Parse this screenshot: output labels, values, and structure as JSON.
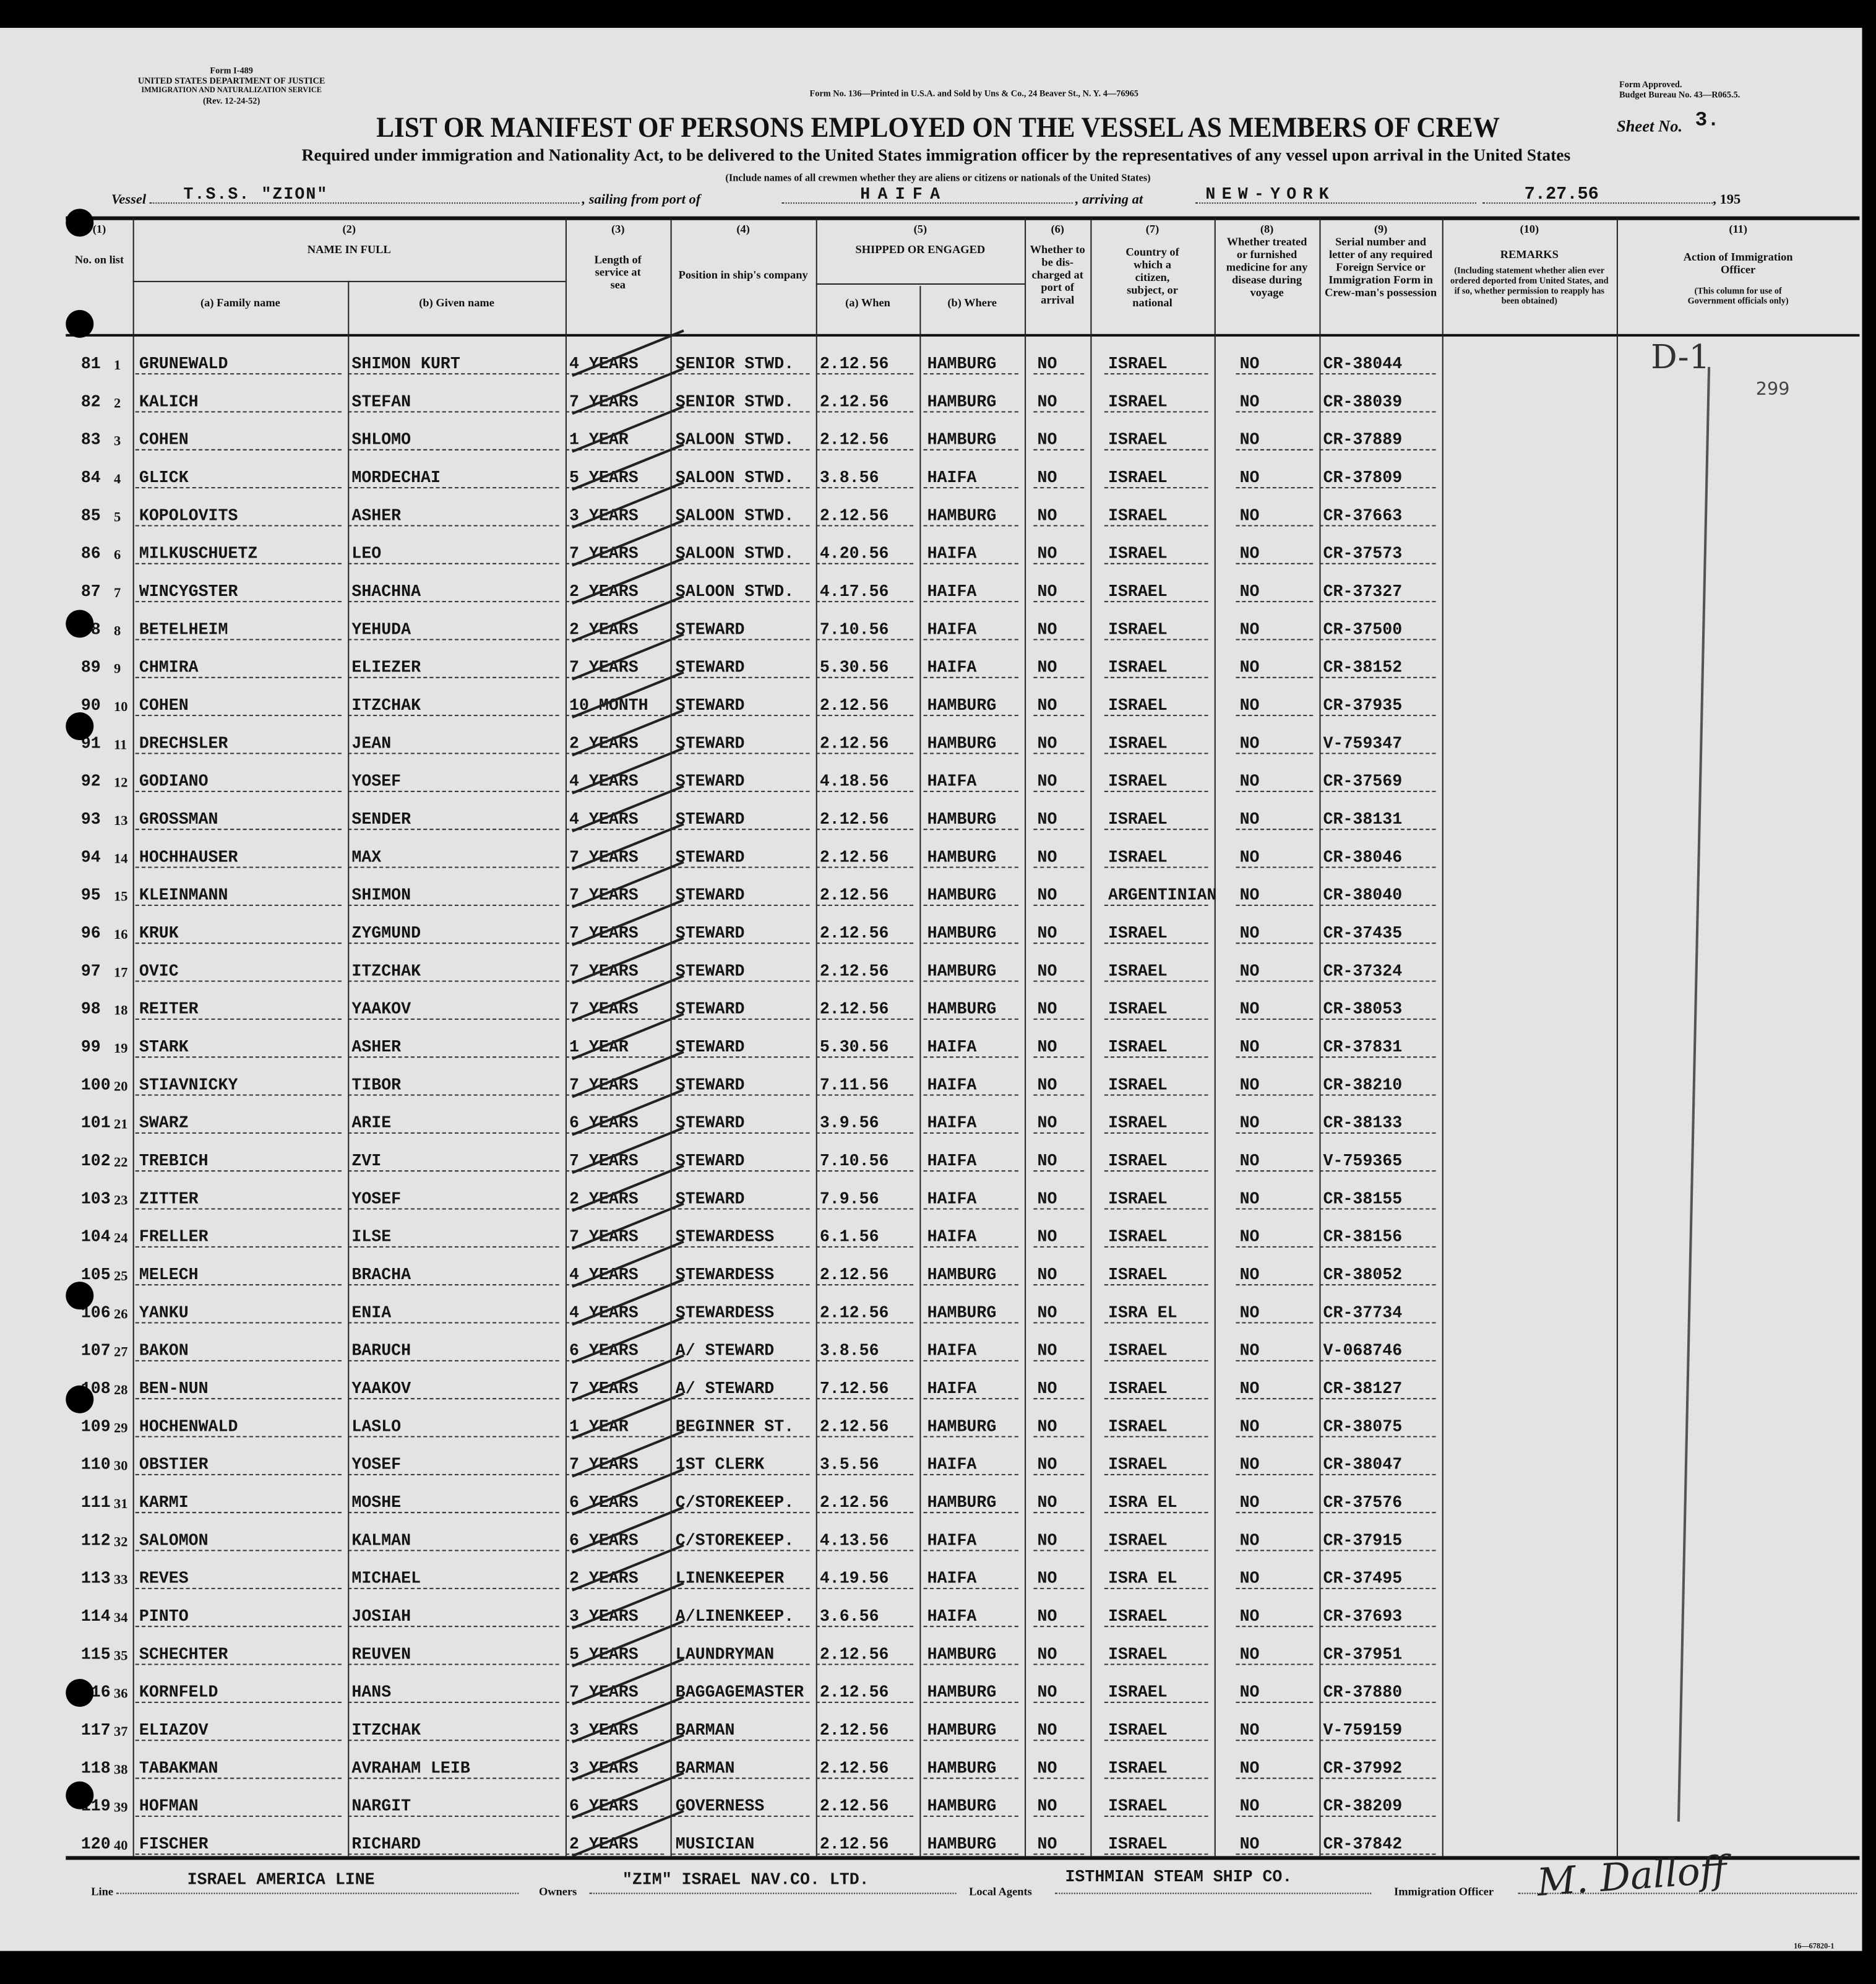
{
  "form": {
    "form_id": "Form I-489",
    "department": "UNITED STATES DEPARTMENT OF JUSTICE",
    "service": "IMMIGRATION AND NATURALIZATION SERVICE",
    "revision": "(Rev. 12-24-52)",
    "printer_note": "Form No. 136—Printed in U.S.A. and Sold by Uns & Co., 24 Beaver St., N. Y. 4—76965",
    "approval": "Form Approved.",
    "budget": "Budget Bureau No. 43—R065.5.",
    "title": "LIST OR MANIFEST OF PERSONS EMPLOYED ON THE VESSEL AS MEMBERS OF CREW",
    "sheet_label": "Sheet No.",
    "sheet_no": "3.",
    "subtitle": "Required under immigration and Nationality Act, to be delivered to the United States immigration officer by the representatives of any vessel upon arrival in the United States",
    "include_note": "(Include names of all crewmen whether they are aliens or citizens or nationals of the United States)",
    "form_number_footer": "16—67820-1"
  },
  "voyage": {
    "vessel_label": "Vessel",
    "vessel": "T.S.S. \"ZION\"",
    "sailing_label": ", sailing from port of",
    "port_from": "HAIFA",
    "arriving_label": ", arriving at",
    "port_to": "NEW-YORK",
    "date": "7.27.56",
    "year_suffix": ", 195"
  },
  "columns": {
    "c1_num": "(1)",
    "c1": "No. on list",
    "c2_num": "(2)",
    "c2": "NAME IN FULL",
    "c2a": "(a) Family name",
    "c2b": "(b) Given name",
    "c3_num": "(3)",
    "c3": "Length of service at sea",
    "c4_num": "(4)",
    "c4": "Position in ship's company",
    "c5_num": "(5)",
    "c5": "SHIPPED OR ENGAGED",
    "c5a": "(a) When",
    "c5b": "(b) Where",
    "c6_num": "(6)",
    "c6": "Whether to be dis-charged at port of arrival",
    "c7_num": "(7)",
    "c7": "Country of which a citizen, subject, or national",
    "c8_num": "(8)",
    "c8": "Whether treated or furnished medicine for any disease during voyage",
    "c9_num": "(9)",
    "c9": "Serial number and letter of any required Foreign Service or Immigration Form in Crew-man's possession",
    "c10_num": "(10)",
    "c10": "REMARKS",
    "c10_note": "(Including statement whether alien ever ordered deported from United States, and if so, whether permission to reapply has been obtained)",
    "c11_num": "(11)",
    "c11": "Action of Immigration Officer",
    "c11_note": "(This column for use of Government officials only)"
  },
  "handwritten": {
    "action_mark": "D-1",
    "page_stamp": "299"
  },
  "rows": [
    [
      "81",
      "1",
      "GRUNEWALD",
      "SHIMON KURT",
      "4 YEARS",
      "SENIOR STWD.",
      "2.12.56",
      "HAMBURG",
      "NO",
      "ISRAEL",
      "NO",
      "CR-38044"
    ],
    [
      "82",
      "2",
      "KALICH",
      "STEFAN",
      "7 YEARS",
      "SENIOR STWD.",
      "2.12.56",
      "HAMBURG",
      "NO",
      "ISRAEL",
      "NO",
      "CR-38039"
    ],
    [
      "83",
      "3",
      "COHEN",
      "SHLOMO",
      "1 YEAR",
      "SALOON STWD.",
      "2.12.56",
      "HAMBURG",
      "NO",
      "ISRAEL",
      "NO",
      "CR-37889"
    ],
    [
      "84",
      "4",
      "GLICK",
      "MORDECHAI",
      "5 YEARS",
      "SALOON STWD.",
      "3.8.56",
      "HAIFA",
      "NO",
      "ISRAEL",
      "NO",
      "CR-37809"
    ],
    [
      "85",
      "5",
      "KOPOLOVITS",
      "ASHER",
      "3 YEARS",
      "SALOON STWD.",
      "2.12.56",
      "HAMBURG",
      "NO",
      "ISRAEL",
      "NO",
      "CR-37663"
    ],
    [
      "86",
      "6",
      "MILKUSCHUETZ",
      "LEO",
      "7 YEARS",
      "SALOON STWD.",
      "4.20.56",
      "HAIFA",
      "NO",
      "ISRAEL",
      "NO",
      "CR-37573"
    ],
    [
      "87",
      "7",
      "WINCYGSTER",
      "SHACHNA",
      "2 YEARS",
      "SALOON STWD.",
      "4.17.56",
      "HAIFA",
      "NO",
      "ISRAEL",
      "NO",
      "CR-37327"
    ],
    [
      "88",
      "8",
      "BETELHEIM",
      "YEHUDA",
      "2 YEARS",
      "STEWARD",
      "7.10.56",
      "HAIFA",
      "NO",
      "ISRAEL",
      "NO",
      "CR-37500"
    ],
    [
      "89",
      "9",
      "CHMIRA",
      "ELIEZER",
      "7 YEARS",
      "STEWARD",
      "5.30.56",
      "HAIFA",
      "NO",
      "ISRAEL",
      "NO",
      "CR-38152"
    ],
    [
      "90",
      "10",
      "COHEN",
      "ITZCHAK",
      "10 MONTH",
      "STEWARD",
      "2.12.56",
      "HAMBURG",
      "NO",
      "ISRAEL",
      "NO",
      "CR-37935"
    ],
    [
      "91",
      "11",
      "DRECHSLER",
      "JEAN",
      "2 YEARS",
      "STEWARD",
      "2.12.56",
      "HAMBURG",
      "NO",
      "ISRAEL",
      "NO",
      "V-759347"
    ],
    [
      "92",
      "12",
      "GODIANO",
      "YOSEF",
      "4 YEARS",
      "STEWARD",
      "4.18.56",
      "HAIFA",
      "NO",
      "ISRAEL",
      "NO",
      "CR-37569"
    ],
    [
      "93",
      "13",
      "GROSSMAN",
      "SENDER",
      "4 YEARS",
      "STEWARD",
      "2.12.56",
      "HAMBURG",
      "NO",
      "ISRAEL",
      "NO",
      "CR-38131"
    ],
    [
      "94",
      "14",
      "HOCHHAUSER",
      "MAX",
      "7 YEARS",
      "STEWARD",
      "2.12.56",
      "HAMBURG",
      "NO",
      "ISRAEL",
      "NO",
      "CR-38046"
    ],
    [
      "95",
      "15",
      "KLEINMANN",
      "SHIMON",
      "7 YEARS",
      "STEWARD",
      "2.12.56",
      "HAMBURG",
      "NO",
      "ARGENTINIAN",
      "NO",
      "CR-38040"
    ],
    [
      "96",
      "16",
      "KRUK",
      "ZYGMUND",
      "7 YEARS",
      "STEWARD",
      "2.12.56",
      "HAMBURG",
      "NO",
      "ISRAEL",
      "NO",
      "CR-37435"
    ],
    [
      "97",
      "17",
      "OVIC",
      "ITZCHAK",
      "7 YEARS",
      "STEWARD",
      "2.12.56",
      "HAMBURG",
      "NO",
      "ISRAEL",
      "NO",
      "CR-37324"
    ],
    [
      "98",
      "18",
      "REITER",
      "YAAKOV",
      "7 YEARS",
      "STEWARD",
      "2.12.56",
      "HAMBURG",
      "NO",
      "ISRAEL",
      "NO",
      "CR-38053"
    ],
    [
      "99",
      "19",
      "STARK",
      "ASHER",
      "1 YEAR",
      "STEWARD",
      "5.30.56",
      "HAIFA",
      "NO",
      "ISRAEL",
      "NO",
      "CR-37831"
    ],
    [
      "100",
      "20",
      "STIAVNICKY",
      "TIBOR",
      "7 YEARS",
      "STEWARD",
      "7.11.56",
      "HAIFA",
      "NO",
      "ISRAEL",
      "NO",
      "CR-38210"
    ],
    [
      "101",
      "21",
      "SWARZ",
      "ARIE",
      "6 YEARS",
      "STEWARD",
      "3.9.56",
      "HAIFA",
      "NO",
      "ISRAEL",
      "NO",
      "CR-38133"
    ],
    [
      "102",
      "22",
      "TREBICH",
      "ZVI",
      "7 YEARS",
      "STEWARD",
      "7.10.56",
      "HAIFA",
      "NO",
      "ISRAEL",
      "NO",
      "V-759365"
    ],
    [
      "103",
      "23",
      "ZITTER",
      "YOSEF",
      "2 YEARS",
      "STEWARD",
      "7.9.56",
      "HAIFA",
      "NO",
      "ISRAEL",
      "NO",
      "CR-38155"
    ],
    [
      "104",
      "24",
      "FRELLER",
      "ILSE",
      "7 YEARS",
      "STEWARDESS",
      "6.1.56",
      "HAIFA",
      "NO",
      "ISRAEL",
      "NO",
      "CR-38156"
    ],
    [
      "105",
      "25",
      "MELECH",
      "BRACHA",
      "4 YEARS",
      "STEWARDESS",
      "2.12.56",
      "HAMBURG",
      "NO",
      "ISRAEL",
      "NO",
      "CR-38052"
    ],
    [
      "106",
      "26",
      "YANKU",
      "ENIA",
      "4 YEARS",
      "STEWARDESS",
      "2.12.56",
      "HAMBURG",
      "NO",
      "ISRA EL",
      "NO",
      "CR-37734"
    ],
    [
      "107",
      "27",
      "BAKON",
      "BARUCH",
      "6 YEARS",
      "A/ STEWARD",
      "3.8.56",
      "HAIFA",
      "NO",
      "ISRAEL",
      "NO",
      "V-068746"
    ],
    [
      "108",
      "28",
      "BEN-NUN",
      "YAAKOV",
      "7 YEARS",
      "A/ STEWARD",
      "7.12.56",
      "HAIFA",
      "NO",
      "ISRAEL",
      "NO",
      "CR-38127"
    ],
    [
      "109",
      "29",
      "HOCHENWALD",
      "LASLO",
      "1 YEAR",
      "BEGINNER ST.",
      "2.12.56",
      "HAMBURG",
      "NO",
      "ISRAEL",
      "NO",
      "CR-38075"
    ],
    [
      "110",
      "30",
      "OBSTIER",
      "YOSEF",
      "7 YEARS",
      "1ST CLERK",
      "3.5.56",
      "HAIFA",
      "NO",
      "ISRAEL",
      "NO",
      "CR-38047"
    ],
    [
      "111",
      "31",
      "KARMI",
      "MOSHE",
      "6 YEARS",
      "C/STOREKEEP.",
      "2.12.56",
      "HAMBURG",
      "NO",
      "ISRA EL",
      "NO",
      "CR-37576"
    ],
    [
      "112",
      "32",
      "SALOMON",
      "KALMAN",
      "6 YEARS",
      "C/STOREKEEP.",
      "4.13.56",
      "HAIFA",
      "NO",
      "ISRAEL",
      "NO",
      "CR-37915"
    ],
    [
      "113",
      "33",
      "REVES",
      "MICHAEL",
      "2 YEARS",
      "LINENKEEPER",
      "4.19.56",
      "HAIFA",
      "NO",
      "ISRA EL",
      "NO",
      "CR-37495"
    ],
    [
      "114",
      "34",
      "PINTO",
      "JOSIAH",
      "3 YEARS",
      "A/LINENKEEP.",
      "3.6.56",
      "HAIFA",
      "NO",
      "ISRAEL",
      "NO",
      "CR-37693"
    ],
    [
      "115",
      "35",
      "SCHECHTER",
      "REUVEN",
      "5 YEARS",
      "LAUNDRYMAN",
      "2.12.56",
      "HAMBURG",
      "NO",
      "ISRAEL",
      "NO",
      "CR-37951"
    ],
    [
      "116",
      "36",
      "KORNFELD",
      "HANS",
      "7 YEARS",
      "BAGGAGEMASTER",
      "2.12.56",
      "HAMBURG",
      "NO",
      "ISRAEL",
      "NO",
      "CR-37880"
    ],
    [
      "117",
      "37",
      "ELIAZOV",
      "ITZCHAK",
      "3 YEARS",
      "BARMAN",
      "2.12.56",
      "HAMBURG",
      "NO",
      "ISRAEL",
      "NO",
      "V-759159"
    ],
    [
      "118",
      "38",
      "TABAKMAN",
      "AVRAHAM LEIB",
      "3 YEARS",
      "BARMAN",
      "2.12.56",
      "HAMBURG",
      "NO",
      "ISRAEL",
      "NO",
      "CR-37992"
    ],
    [
      "119",
      "39",
      "HOFMAN",
      "NARGIT",
      "6 YEARS",
      "GOVERNESS",
      "2.12.56",
      "HAMBURG",
      "NO",
      "ISRAEL",
      "NO",
      "CR-38209"
    ],
    [
      "120",
      "40",
      "FISCHER",
      "RICHARD",
      "2 YEARS",
      "MUSICIAN",
      "2.12.56",
      "HAMBURG",
      "NO",
      "ISRAEL",
      "NO",
      "CR-37842"
    ]
  ],
  "footer": {
    "line_label": "Line",
    "line": "ISRAEL AMERICA LINE",
    "owners_label": "Owners",
    "owners": "\"ZIM\" ISRAEL NAV.CO. LTD.",
    "agents_label": "Local Agents",
    "agents": "ISTHMIAN STEAM SHIP CO.",
    "officer_label": "Immigration Officer",
    "officer_signature": "M. Dalloff"
  }
}
